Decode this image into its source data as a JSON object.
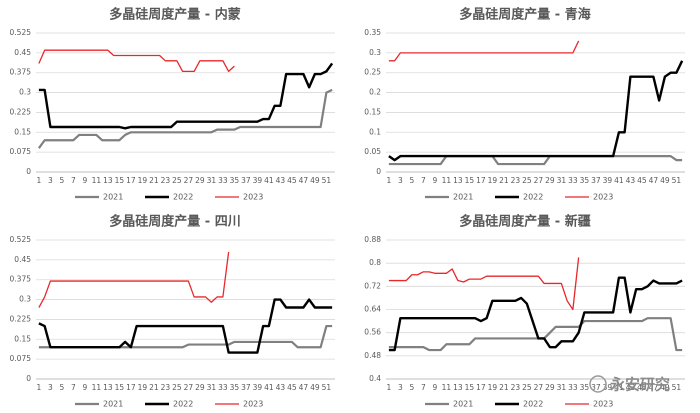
{
  "chart_data": [
    {
      "type": "line",
      "title": "多晶硅周度产量 - 内蒙",
      "categories": [
        1,
        null,
        3,
        null,
        5,
        null,
        7,
        null,
        9,
        null,
        11,
        null,
        13,
        null,
        15,
        null,
        17,
        null,
        19,
        null,
        21,
        null,
        23,
        null,
        25,
        null,
        27,
        null,
        29,
        null,
        31,
        null,
        33,
        null,
        35,
        null,
        37,
        null,
        39,
        null,
        41,
        null,
        43,
        null,
        45,
        null,
        47,
        null,
        49,
        null,
        51,
        null
      ],
      "ylim": [
        0,
        0.525
      ],
      "yticks": [
        0,
        0.075,
        0.15,
        0.225,
        0.3,
        0.375,
        0.45,
        0.525
      ],
      "grid": true,
      "series": [
        {
          "name": "2021",
          "color": "#808080",
          "values": [
            0.09,
            0.12,
            0.12,
            0.12,
            0.12,
            0.12,
            0.12,
            0.14,
            0.14,
            0.14,
            0.14,
            0.12,
            0.12,
            0.12,
            0.12,
            0.14,
            0.15,
            0.15,
            0.15,
            0.15,
            0.15,
            0.15,
            0.15,
            0.15,
            0.15,
            0.15,
            0.15,
            0.15,
            0.15,
            0.15,
            0.15,
            0.16,
            0.16,
            0.16,
            0.16,
            0.17,
            0.17,
            0.17,
            0.17,
            0.17,
            0.17,
            0.17,
            0.17,
            0.17,
            0.17,
            0.17,
            0.17,
            0.17,
            0.17,
            0.17,
            0.3,
            0.31
          ]
        },
        {
          "name": "2022",
          "color": "#000000",
          "values": [
            0.31,
            0.31,
            0.17,
            0.17,
            0.17,
            0.17,
            0.17,
            0.17,
            0.17,
            0.17,
            0.17,
            0.17,
            0.17,
            0.17,
            0.17,
            0.165,
            0.17,
            0.17,
            0.17,
            0.17,
            0.17,
            0.17,
            0.17,
            0.17,
            0.19,
            0.19,
            0.19,
            0.19,
            0.19,
            0.19,
            0.19,
            0.19,
            0.19,
            0.19,
            0.19,
            0.19,
            0.19,
            0.19,
            0.19,
            0.2,
            0.2,
            0.25,
            0.25,
            0.37,
            0.37,
            0.37,
            0.37,
            0.32,
            0.37,
            0.37,
            0.38,
            0.41
          ]
        },
        {
          "name": "2023",
          "color": "#e8282b",
          "values": [
            0.41,
            0.46,
            0.46,
            0.46,
            0.46,
            0.46,
            0.46,
            0.46,
            0.46,
            0.46,
            0.46,
            0.46,
            0.46,
            0.44,
            0.44,
            0.44,
            0.44,
            0.44,
            0.44,
            0.44,
            0.44,
            0.44,
            0.42,
            0.42,
            0.42,
            0.38,
            0.38,
            0.38,
            0.42,
            0.42,
            0.42,
            0.42,
            0.42,
            0.38,
            0.4,
            null,
            null,
            null,
            null,
            null,
            null,
            null,
            null,
            null,
            null,
            null,
            null,
            null,
            null,
            null,
            null,
            null
          ]
        }
      ]
    },
    {
      "type": "line",
      "title": "多晶硅周度产量 - 青海",
      "categories": [
        1,
        null,
        3,
        null,
        5,
        null,
        7,
        null,
        9,
        null,
        11,
        null,
        13,
        null,
        15,
        null,
        17,
        null,
        19,
        null,
        21,
        null,
        23,
        null,
        25,
        null,
        27,
        null,
        29,
        null,
        31,
        null,
        33,
        null,
        35,
        null,
        37,
        null,
        39,
        null,
        41,
        null,
        43,
        null,
        45,
        null,
        47,
        null,
        49,
        null,
        51,
        null
      ],
      "ylim": [
        0,
        0.35
      ],
      "yticks": [
        0,
        0.05,
        0.1,
        0.15,
        0.2,
        0.25,
        0.3,
        0.35
      ],
      "grid": true,
      "series": [
        {
          "name": "2021",
          "color": "#808080",
          "values": [
            0.02,
            0.02,
            0.02,
            0.02,
            0.02,
            0.02,
            0.02,
            0.02,
            0.02,
            0.02,
            0.04,
            0.04,
            0.04,
            0.04,
            0.04,
            0.04,
            0.04,
            0.04,
            0.04,
            0.02,
            0.02,
            0.02,
            0.02,
            0.02,
            0.02,
            0.02,
            0.02,
            0.02,
            0.04,
            0.04,
            0.04,
            0.04,
            0.04,
            0.04,
            0.04,
            0.04,
            0.04,
            0.04,
            0.04,
            0.04,
            0.04,
            0.04,
            0.04,
            0.04,
            0.04,
            0.04,
            0.04,
            0.04,
            0.04,
            0.04,
            0.03,
            0.03
          ]
        },
        {
          "name": "2022",
          "color": "#000000",
          "values": [
            0.04,
            0.03,
            0.04,
            0.04,
            0.04,
            0.04,
            0.04,
            0.04,
            0.04,
            0.04,
            0.04,
            0.04,
            0.04,
            0.04,
            0.04,
            0.04,
            0.04,
            0.04,
            0.04,
            0.04,
            0.04,
            0.04,
            0.04,
            0.04,
            0.04,
            0.04,
            0.04,
            0.04,
            0.04,
            0.04,
            0.04,
            0.04,
            0.04,
            0.04,
            0.04,
            0.04,
            0.04,
            0.04,
            0.04,
            0.04,
            0.1,
            0.1,
            0.24,
            0.24,
            0.24,
            0.24,
            0.24,
            0.18,
            0.24,
            0.25,
            0.25,
            0.28
          ]
        },
        {
          "name": "2023",
          "color": "#e8282b",
          "values": [
            0.28,
            0.28,
            0.3,
            0.3,
            0.3,
            0.3,
            0.3,
            0.3,
            0.3,
            0.3,
            0.3,
            0.3,
            0.3,
            0.3,
            0.3,
            0.3,
            0.3,
            0.3,
            0.3,
            0.3,
            0.3,
            0.3,
            0.3,
            0.3,
            0.3,
            0.3,
            0.3,
            0.3,
            0.3,
            0.3,
            0.3,
            0.3,
            0.3,
            0.33,
            null,
            null,
            null,
            null,
            null,
            null,
            null,
            null,
            null,
            null,
            null,
            null,
            null,
            null,
            null,
            null,
            null,
            null
          ]
        }
      ]
    },
    {
      "type": "line",
      "title": "多晶硅周度产量 - 四川",
      "categories": [
        1,
        null,
        3,
        null,
        5,
        null,
        7,
        null,
        9,
        null,
        11,
        null,
        13,
        null,
        15,
        null,
        17,
        null,
        19,
        null,
        21,
        null,
        23,
        null,
        25,
        null,
        27,
        null,
        29,
        null,
        31,
        null,
        33,
        null,
        35,
        null,
        37,
        null,
        39,
        null,
        41,
        null,
        43,
        null,
        45,
        null,
        47,
        null,
        49,
        null,
        51,
        null
      ],
      "ylim": [
        0,
        0.525
      ],
      "yticks": [
        0,
        0.075,
        0.15,
        0.225,
        0.3,
        0.375,
        0.45,
        0.525
      ],
      "grid": true,
      "series": [
        {
          "name": "2021",
          "color": "#808080",
          "values": [
            0.12,
            0.12,
            0.12,
            0.12,
            0.12,
            0.12,
            0.12,
            0.12,
            0.12,
            0.12,
            0.12,
            0.12,
            0.12,
            0.12,
            0.12,
            0.12,
            0.12,
            0.12,
            0.12,
            0.12,
            0.12,
            0.12,
            0.12,
            0.12,
            0.12,
            0.12,
            0.13,
            0.13,
            0.13,
            0.13,
            0.13,
            0.13,
            0.13,
            0.13,
            0.14,
            0.14,
            0.14,
            0.14,
            0.14,
            0.14,
            0.14,
            0.14,
            0.14,
            0.14,
            0.14,
            0.12,
            0.12,
            0.12,
            0.12,
            0.12,
            0.2,
            0.2
          ]
        },
        {
          "name": "2022",
          "color": "#000000",
          "values": [
            0.21,
            0.2,
            0.12,
            0.12,
            0.12,
            0.12,
            0.12,
            0.12,
            0.12,
            0.12,
            0.12,
            0.12,
            0.12,
            0.12,
            0.12,
            0.14,
            0.12,
            0.2,
            0.2,
            0.2,
            0.2,
            0.2,
            0.2,
            0.2,
            0.2,
            0.2,
            0.2,
            0.2,
            0.2,
            0.2,
            0.2,
            0.2,
            0.2,
            0.1,
            0.1,
            0.1,
            0.1,
            0.1,
            0.1,
            0.2,
            0.2,
            0.3,
            0.3,
            0.27,
            0.27,
            0.27,
            0.27,
            0.3,
            0.27,
            0.27,
            0.27,
            0.27
          ]
        },
        {
          "name": "2023",
          "color": "#e8282b",
          "values": [
            0.27,
            0.31,
            0.37,
            0.37,
            0.37,
            0.37,
            0.37,
            0.37,
            0.37,
            0.37,
            0.37,
            0.37,
            0.37,
            0.37,
            0.37,
            0.37,
            0.37,
            0.37,
            0.37,
            0.37,
            0.37,
            0.37,
            0.37,
            0.37,
            0.37,
            0.37,
            0.37,
            0.31,
            0.31,
            0.31,
            0.29,
            0.31,
            0.31,
            0.48,
            null,
            null,
            null,
            null,
            null,
            null,
            null,
            null,
            null,
            null,
            null,
            null,
            null,
            null,
            null,
            null,
            null,
            null
          ]
        }
      ]
    },
    {
      "type": "line",
      "title": "多晶硅周度产量 - 新疆",
      "categories": [
        1,
        null,
        3,
        null,
        5,
        null,
        7,
        null,
        9,
        null,
        11,
        null,
        13,
        null,
        15,
        null,
        17,
        null,
        19,
        null,
        21,
        null,
        23,
        null,
        25,
        null,
        27,
        null,
        29,
        null,
        31,
        null,
        33,
        null,
        35,
        null,
        37,
        null,
        39,
        null,
        41,
        null,
        43,
        null,
        45,
        null,
        47,
        null,
        49,
        null,
        51,
        null
      ],
      "ylim": [
        0.4,
        0.88
      ],
      "yticks": [
        0.4,
        0.48,
        0.56,
        0.64,
        0.72,
        0.8,
        0.88
      ],
      "grid": true,
      "series": [
        {
          "name": "2021",
          "color": "#808080",
          "values": [
            0.51,
            0.51,
            0.51,
            0.51,
            0.51,
            0.51,
            0.51,
            0.5,
            0.5,
            0.5,
            0.52,
            0.52,
            0.52,
            0.52,
            0.52,
            0.54,
            0.54,
            0.54,
            0.54,
            0.54,
            0.54,
            0.54,
            0.54,
            0.54,
            0.54,
            0.54,
            0.54,
            0.54,
            0.56,
            0.58,
            0.58,
            0.58,
            0.58,
            0.58,
            0.6,
            0.6,
            0.6,
            0.6,
            0.6,
            0.6,
            0.6,
            0.6,
            0.6,
            0.6,
            0.6,
            0.61,
            0.61,
            0.61,
            0.61,
            0.61,
            0.5,
            0.5
          ]
        },
        {
          "name": "2022",
          "color": "#000000",
          "values": [
            0.5,
            0.5,
            0.61,
            0.61,
            0.61,
            0.61,
            0.61,
            0.61,
            0.61,
            0.61,
            0.61,
            0.61,
            0.61,
            0.61,
            0.61,
            0.61,
            0.6,
            0.61,
            0.67,
            0.67,
            0.67,
            0.67,
            0.67,
            0.68,
            0.66,
            0.6,
            0.54,
            0.54,
            0.51,
            0.51,
            0.53,
            0.53,
            0.53,
            0.56,
            0.63,
            0.63,
            0.63,
            0.63,
            0.63,
            0.63,
            0.75,
            0.75,
            0.63,
            0.71,
            0.71,
            0.72,
            0.74,
            0.73,
            0.73,
            0.73,
            0.73,
            0.74
          ]
        },
        {
          "name": "2023",
          "color": "#e8282b",
          "values": [
            0.74,
            0.74,
            0.74,
            0.74,
            0.76,
            0.76,
            0.77,
            0.77,
            0.765,
            0.765,
            0.765,
            0.78,
            0.74,
            0.735,
            0.745,
            0.745,
            0.745,
            0.755,
            0.755,
            0.755,
            0.755,
            0.755,
            0.755,
            0.755,
            0.755,
            0.755,
            0.755,
            0.73,
            0.73,
            0.73,
            0.73,
            0.67,
            0.64,
            0.82,
            null,
            null,
            null,
            null,
            null,
            null,
            null,
            null,
            null,
            null,
            null,
            null,
            null,
            null,
            null,
            null,
            null,
            null
          ]
        }
      ]
    }
  ],
  "watermark": "永安研究"
}
